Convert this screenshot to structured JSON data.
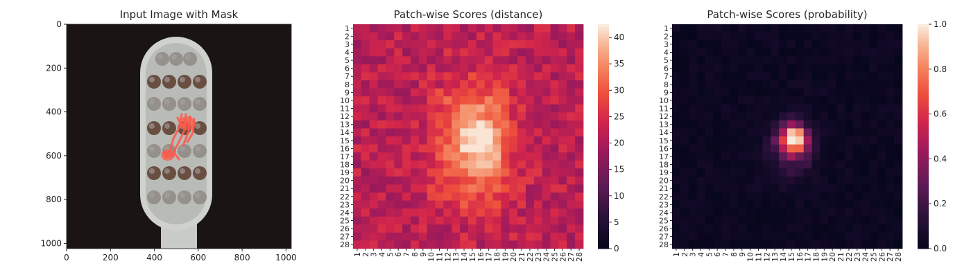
{
  "chart_data": [
    {
      "type": "image",
      "title": "Input Image with Mask",
      "xlim": [
        0,
        1024
      ],
      "ylim": [
        1024,
        0
      ],
      "xticks": [
        0,
        200,
        400,
        600,
        800,
        1000
      ],
      "yticks": [
        0,
        200,
        400,
        600,
        800,
        1000
      ],
      "mask_color": "#ff5a4a",
      "background_color": "#1a1412"
    },
    {
      "type": "heatmap",
      "title": "Patch-wise Scores (distance)",
      "rows": 28,
      "cols": 28,
      "row_labels": [
        "1",
        "2",
        "3",
        "4",
        "5",
        "6",
        "7",
        "8",
        "9",
        "10",
        "11",
        "12",
        "13",
        "14",
        "15",
        "16",
        "17",
        "18",
        "19",
        "20",
        "21",
        "22",
        "23",
        "24",
        "25",
        "26",
        "27",
        "28"
      ],
      "col_labels": [
        "1",
        "2",
        "3",
        "4",
        "5",
        "6",
        "7",
        "8",
        "9",
        "10",
        "11",
        "12",
        "13",
        "14",
        "15",
        "16",
        "17",
        "18",
        "19",
        "20",
        "21",
        "22",
        "23",
        "24",
        "25",
        "26",
        "27",
        "28"
      ],
      "colorbar": {
        "min": 0,
        "max": 42.5,
        "ticks": [
          0,
          5,
          10,
          15,
          20,
          25,
          30,
          35,
          40
        ]
      },
      "colormap": "rocket",
      "background_value": 22,
      "peak_value": 42,
      "peak_cell": [
        15,
        15
      ]
    },
    {
      "type": "heatmap",
      "title": "Patch-wise Scores (probability)",
      "rows": 28,
      "cols": 28,
      "row_labels": [
        "1",
        "2",
        "3",
        "4",
        "5",
        "6",
        "7",
        "8",
        "9",
        "10",
        "11",
        "12",
        "13",
        "14",
        "15",
        "16",
        "17",
        "18",
        "19",
        "20",
        "21",
        "22",
        "23",
        "24",
        "25",
        "26",
        "27",
        "28"
      ],
      "col_labels": [
        "1",
        "2",
        "3",
        "4",
        "5",
        "6",
        "7",
        "8",
        "9",
        "10",
        "11",
        "12",
        "13",
        "14",
        "15",
        "16",
        "17",
        "18",
        "19",
        "20",
        "21",
        "22",
        "23",
        "24",
        "25",
        "26",
        "27",
        "28"
      ],
      "colorbar": {
        "min": 0.0,
        "max": 1.0,
        "ticks": [
          "0.0",
          "0.2",
          "0.4",
          "0.6",
          "0.8",
          "1.0"
        ]
      },
      "colormap": "rocket",
      "background_value": 0.01,
      "peak_value": 1.0,
      "peak_cell": [
        14,
        15
      ]
    }
  ]
}
